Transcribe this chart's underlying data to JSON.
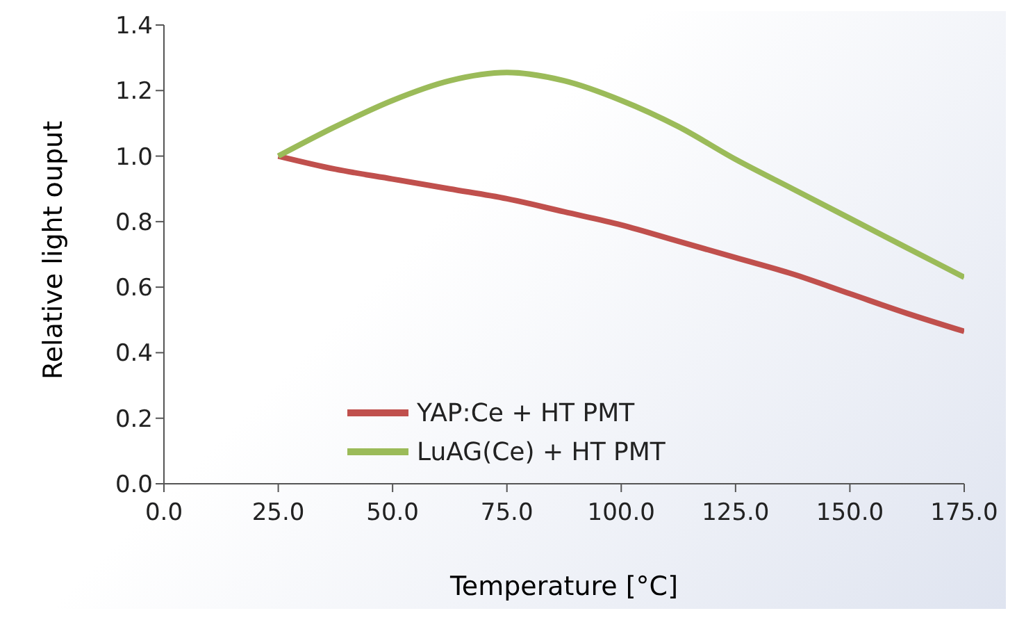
{
  "chart_data": {
    "type": "line",
    "xlabel": "Temperature [°C]",
    "ylabel": "Relative light ouput",
    "xlim": [
      0,
      175
    ],
    "xticks": [
      {
        "value": 0,
        "label": "0.0"
      },
      {
        "value": 25,
        "label": "25.0"
      },
      {
        "value": 50,
        "label": "50.0"
      },
      {
        "value": 75,
        "label": "75.0"
      },
      {
        "value": 100,
        "label": "100.0"
      },
      {
        "value": 125,
        "label": "125.0"
      },
      {
        "value": 150,
        "label": "150.0"
      },
      {
        "value": 175,
        "label": "175.0"
      }
    ],
    "ylim": [
      0,
      1.4
    ],
    "yticks": [
      {
        "value": 0,
        "label": "0.0"
      },
      {
        "value": 0.2,
        "label": "0.2"
      },
      {
        "value": 0.4,
        "label": "0.4"
      },
      {
        "value": 0.6,
        "label": "0.6"
      },
      {
        "value": 0.8,
        "label": "0.8"
      },
      {
        "value": 1,
        "label": "1.0"
      },
      {
        "value": 1.2,
        "label": "1.2"
      },
      {
        "value": 1.4,
        "label": "1.4"
      }
    ],
    "x": [
      25,
      37.5,
      50,
      62.5,
      75,
      87.5,
      100,
      112.5,
      125,
      137.5,
      150,
      162.5,
      175
    ],
    "series": [
      {
        "name": "YAP:Ce + HT PMT",
        "color": "#c0504d",
        "values": [
          1.0,
          0.96,
          0.93,
          0.9,
          0.87,
          0.83,
          0.79,
          0.74,
          0.69,
          0.64,
          0.58,
          0.52,
          0.465
        ]
      },
      {
        "name": "LuAG(Ce) + HT PMT",
        "color": "#9bbb59",
        "values": [
          1.0,
          1.09,
          1.17,
          1.23,
          1.255,
          1.23,
          1.17,
          1.09,
          0.99,
          0.9,
          0.81,
          0.72,
          0.63
        ]
      }
    ],
    "grid": false,
    "legend": "bottom",
    "marker": "none",
    "line_style": "solid"
  }
}
